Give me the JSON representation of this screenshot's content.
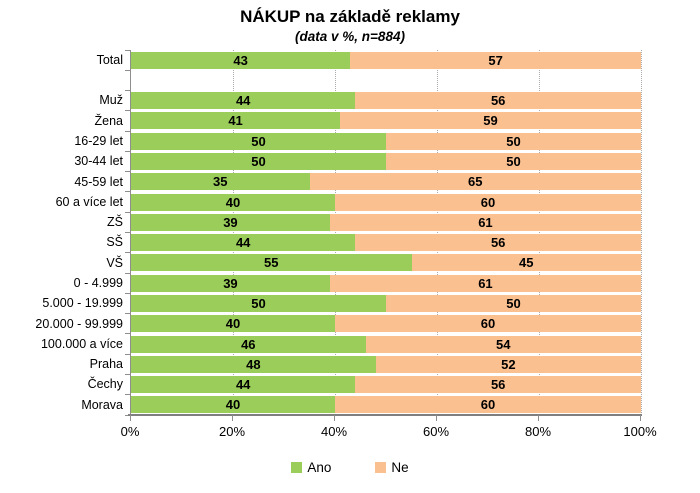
{
  "chart_data": {
    "type": "bar",
    "stacked": true,
    "orientation": "horizontal",
    "title": "NÁKUP na základě reklamy",
    "subtitle": "(data v %, n=884)",
    "categories": [
      "Total",
      "Muž",
      "Žena",
      "16-29 let",
      "30-44 let",
      "45-59 let",
      "60 a více let",
      "ZŠ",
      "SŠ",
      "VŠ",
      "0 - 4.999",
      "5.000 - 19.999",
      "20.000 - 99.999",
      "100.000 a více",
      "Praha",
      "Čechy",
      "Morava"
    ],
    "series": [
      {
        "name": "Ano",
        "color": "#9ACD5A",
        "values": [
          43,
          44,
          41,
          50,
          50,
          35,
          40,
          39,
          44,
          55,
          39,
          50,
          40,
          46,
          48,
          44,
          40
        ]
      },
      {
        "name": "Ne",
        "color": "#FAC090",
        "values": [
          57,
          56,
          59,
          50,
          50,
          65,
          60,
          61,
          56,
          45,
          61,
          50,
          60,
          54,
          52,
          56,
          60
        ]
      }
    ],
    "x_ticks": [
      "0%",
      "20%",
      "40%",
      "60%",
      "80%",
      "100%"
    ],
    "xlim": [
      0,
      100
    ],
    "gap_after": "Total",
    "grid": true,
    "legend_position": "bottom",
    "data_label_style": "bold-black-centered",
    "axis_color": "#8e8e8e",
    "gridline_color": "#ababab",
    "background_color": "#ffffff"
  }
}
